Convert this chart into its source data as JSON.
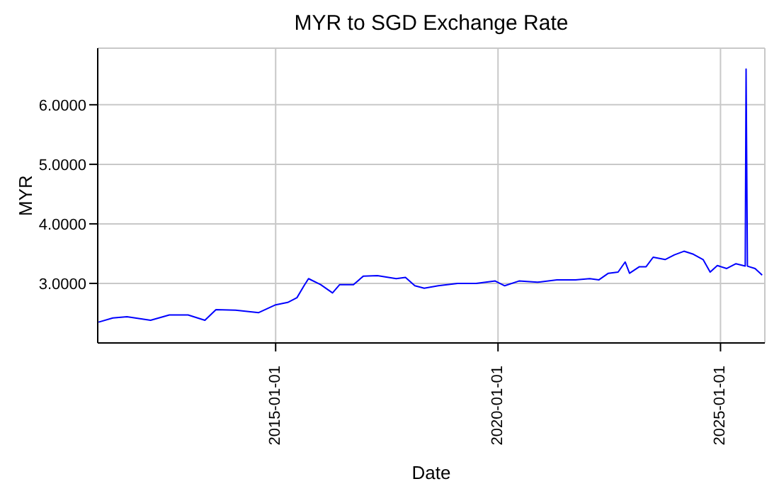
{
  "chart_data": {
    "type": "line",
    "title": "MYR to SGD Exchange Rate",
    "xlabel": "Date",
    "ylabel": "MYR",
    "x": [
      "2011-01-08",
      "2011-05-05",
      "2011-08-29",
      "2012-03-10",
      "2012-08-11",
      "2013-01-12",
      "2013-05-30",
      "2013-08-29",
      "2014-02-06",
      "2014-08-15",
      "2015-01-01",
      "2015-04-10",
      "2015-06-25",
      "2015-08-22",
      "2015-09-28",
      "2016-01-05",
      "2016-04-12",
      "2016-06-10",
      "2016-10-01",
      "2016-12-20",
      "2017-04-16",
      "2017-09-17",
      "2017-12-02",
      "2018-02-17",
      "2018-05-05",
      "2018-08-29",
      "2019-02-03",
      "2019-07-05",
      "2019-12-09",
      "2020-02-25",
      "2020-06-21",
      "2020-11-21",
      "2021-04-28",
      "2021-09-28",
      "2022-01-23",
      "2022-04-09",
      "2022-06-25",
      "2022-09-13",
      "2022-11-10",
      "2022-12-16",
      "2023-03-07",
      "2023-05-01",
      "2023-06-28",
      "2023-10-04",
      "2023-12-20",
      "2024-03-07",
      "2024-05-23",
      "2024-08-11",
      "2024-10-08",
      "2024-12-06",
      "2025-02-21",
      "2025-05-08",
      "2025-07-23",
      "2025-07-30",
      "2025-08-10",
      "2025-10-12",
      "2025-12-09"
    ],
    "series": [
      {
        "color": "#0000ff",
        "values": [
          2.35,
          2.42,
          2.44,
          2.38,
          2.47,
          2.47,
          2.38,
          2.56,
          2.55,
          2.51,
          2.64,
          2.68,
          2.76,
          2.96,
          3.08,
          2.98,
          2.84,
          2.98,
          2.98,
          3.12,
          3.13,
          3.08,
          3.1,
          2.96,
          2.92,
          2.96,
          3.0,
          3.0,
          3.04,
          2.96,
          3.04,
          3.02,
          3.06,
          3.06,
          3.08,
          3.06,
          3.17,
          3.19,
          3.36,
          3.17,
          3.28,
          3.28,
          3.44,
          3.4,
          3.48,
          3.54,
          3.49,
          3.4,
          3.19,
          3.3,
          3.25,
          3.33,
          3.29,
          6.6,
          3.29,
          3.25,
          3.14
        ]
      }
    ],
    "xlim": [
      "2011-01-01",
      "2025-12-31"
    ],
    "xticks": [
      {
        "value": "2015-01-01",
        "label": "2015-01-01"
      },
      {
        "value": "2020-01-01",
        "label": "2020-01-01"
      },
      {
        "value": "2025-01-01",
        "label": "2025-01-01"
      }
    ],
    "ylim": [
      2,
      6.95
    ],
    "yticks": [
      {
        "value": 3,
        "label": "3.0000"
      },
      {
        "value": 4,
        "label": "4.0000"
      },
      {
        "value": 5,
        "label": "5.0000"
      },
      {
        "value": 6,
        "label": "6.0000"
      }
    ],
    "grid": true,
    "marker": "none",
    "line_style": "solid"
  }
}
